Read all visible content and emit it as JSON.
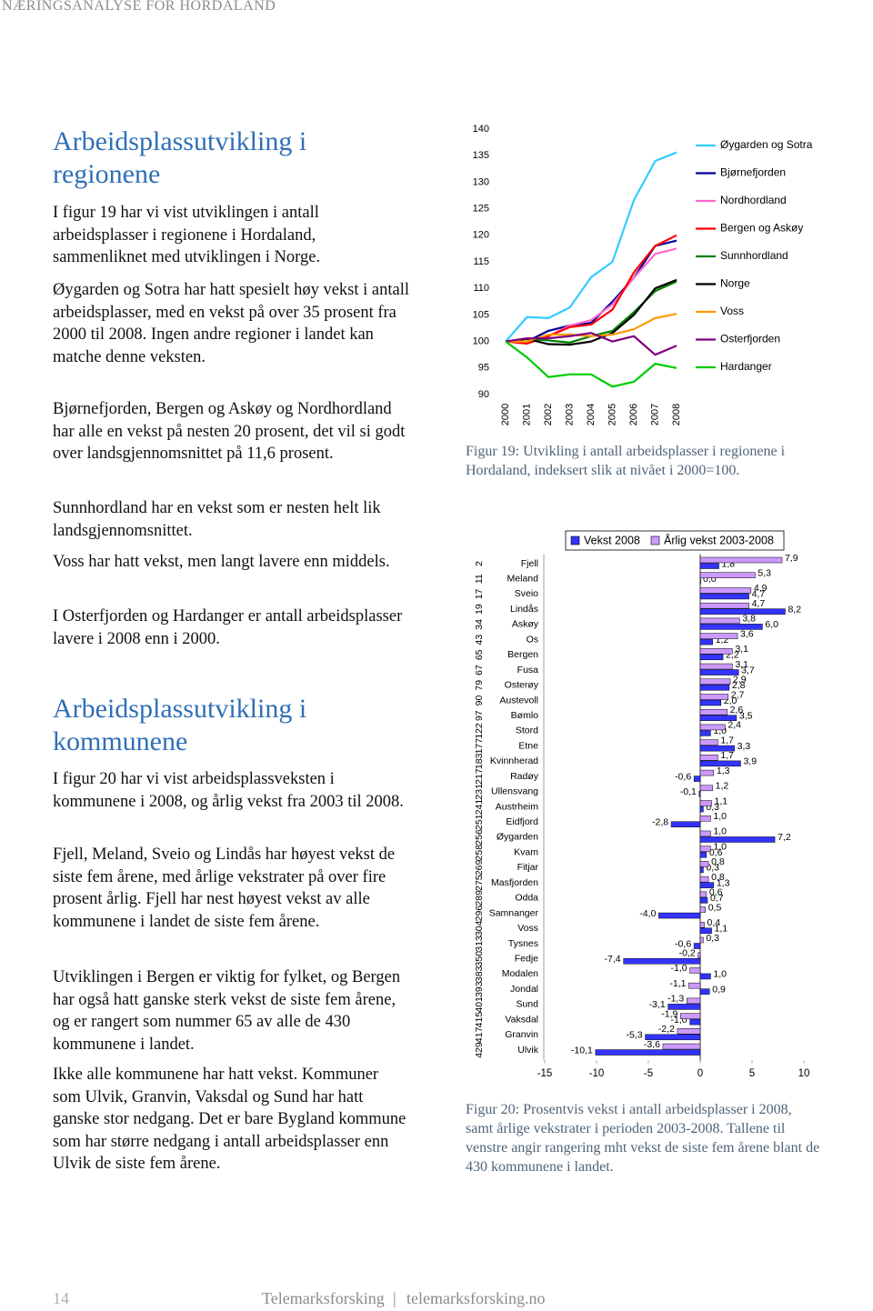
{
  "header": "NÆRINGSANALYSE FOR HORDALAND",
  "sections": [
    {
      "heading": "Arbeidsplassutvikling i regionene",
      "paragraphs": [
        "I figur 19 har vi vist utviklingen i antall arbeidsplasser i regionene i Hordaland, sammenliknet med utviklingen i Norge.",
        "Øygarden og Sotra har hatt spesielt høy vekst i antall arbeidsplasser, med en vekst på over 35 prosent fra 2000 til 2008. Ingen andre regioner i landet kan matche denne veksten.",
        "Bjørnefjorden, Bergen og Askøy og Nordhordland har alle en vekst på nesten 20 prosent, det vil si godt over landsgjennomsnittet på 11,6 prosent.",
        "Sunnhordland har en vekst som er nesten helt lik landsgjennomsnittet.",
        "Voss har hatt vekst, men langt lavere enn middels.",
        "I Osterfjorden og Hardanger er antall arbeidsplasser lavere i 2008 enn i 2000."
      ]
    },
    {
      "heading": "Arbeidsplassutvikling i kommunene",
      "paragraphs": [
        "I figur 20 har vi vist arbeidsplassveksten i kommunene i 2008, og årlig vekst fra 2003 til 2008.",
        "Fjell, Meland, Sveio og Lindås har høyest vekst de siste fem årene, med årlige vekstrater på over fire prosent årlig. Fjell har nest høyest vekst av alle kommunene i landet de siste fem årene.",
        "Utviklingen i Bergen er viktig for fylket, og Bergen har også hatt ganske sterk vekst de siste fem årene, og er rangert som nummer 65 av alle de 430 kommunene i landet.",
        "Ikke alle kommunene har hatt vekst. Kommuner som Ulvik, Granvin, Vaksdal og Sund har hatt ganske stor nedgang. Det er bare Bygland kommune som har større nedgang i antall arbeidsplasser enn Ulvik de siste fem årene."
      ]
    }
  ],
  "chart_data": [
    {
      "type": "line",
      "categories": [
        "2000",
        "2001",
        "2002",
        "2003",
        "2004",
        "2005",
        "2006",
        "2007",
        "2008"
      ],
      "series": [
        {
          "name": "Øygarden og Sotra",
          "color": "#33ccff",
          "values": [
            100,
            104.6,
            104.4,
            106.4,
            112.1,
            115,
            126.6,
            134,
            135.6
          ]
        },
        {
          "name": "Bjørnefjorden",
          "color": "#000099",
          "values": [
            100,
            100,
            102,
            103,
            103.5,
            107.5,
            112,
            118,
            119
          ]
        },
        {
          "name": "Nordhordland",
          "color": "#ff66cc",
          "values": [
            100,
            100,
            101,
            103,
            104,
            107,
            112,
            116.5,
            117.5
          ]
        },
        {
          "name": "Bergen og Askøy",
          "color": "#ff0000",
          "values": [
            100,
            99.6,
            101,
            102.7,
            103.2,
            106,
            113,
            118,
            120
          ]
        },
        {
          "name": "Sunnhordland",
          "color": "#008000",
          "values": [
            100,
            100.5,
            100.2,
            99.8,
            101,
            102,
            105.5,
            109.5,
            111.3
          ]
        },
        {
          "name": "Norge",
          "color": "#000000",
          "values": [
            100,
            100.5,
            99.5,
            99.4,
            100,
            101.6,
            105,
            110,
            111.6
          ]
        },
        {
          "name": "Voss",
          "color": "#ff9900",
          "values": [
            100,
            100,
            101.3,
            101.3,
            101,
            101.3,
            102.3,
            104.4,
            105.2
          ]
        },
        {
          "name": "Osterfjorden",
          "color": "#800080",
          "values": [
            100,
            100.6,
            100.6,
            101,
            101.6,
            100,
            101,
            97.5,
            99.2
          ]
        },
        {
          "name": "Hardanger",
          "color": "#00cc00",
          "values": [
            100,
            97,
            93.3,
            93.8,
            93.8,
            91.5,
            92.4,
            95.8,
            95
          ]
        }
      ],
      "ylim": [
        90,
        140
      ],
      "yticks": [
        90,
        95,
        100,
        105,
        110,
        115,
        120,
        125,
        130,
        135,
        140
      ],
      "legend": "right"
    },
    {
      "type": "bar",
      "orientation": "horizontal",
      "categories": [
        "Fjell",
        "Meland",
        "Sveio",
        "Lindås",
        "Askøy",
        "Os",
        "Bergen",
        "Fusa",
        "Osterøy",
        "Austevoll",
        "Bømlo",
        "Stord",
        "Etne",
        "Kvinnherad",
        "Radøy",
        "Ullensvang",
        "Austrheim",
        "Eidfjord",
        "Øygarden",
        "Kvam",
        "Fitjar",
        "Masfjorden",
        "Odda",
        "Samnanger",
        "Voss",
        "Tysnes",
        "Fedje",
        "Modalen",
        "Jondal",
        "Sund",
        "Vaksdal",
        "Granvin",
        "Ulvik"
      ],
      "ranks": [
        2,
        11,
        17,
        19,
        34,
        43,
        65,
        67,
        79,
        90,
        97,
        122,
        177,
        183,
        217,
        231,
        241,
        251,
        256,
        258,
        269,
        275,
        289,
        296,
        304,
        313,
        350,
        383,
        393,
        401,
        415,
        417,
        429
      ],
      "series": [
        {
          "name": "Vekst 2008",
          "color": "#3333ff",
          "values": [
            1.8,
            0.0,
            4.7,
            8.2,
            6.0,
            1.2,
            2.2,
            3.7,
            2.8,
            2.0,
            3.5,
            1.0,
            3.3,
            3.9,
            -0.6,
            -0.1,
            0.3,
            -2.8,
            7.2,
            0.6,
            0.3,
            1.3,
            0.7,
            -4.0,
            1.1,
            -0.6,
            -7.4,
            1.0,
            0.9,
            -3.1,
            -1.0,
            -5.3,
            -10.1
          ],
          "value_labels": [
            "1,8",
            "0,0",
            "4,7",
            "8,2",
            "6,0",
            "1,2",
            "2,2",
            "3,7",
            "2,8",
            "2,0",
            "3,5",
            "1,0",
            "3,3",
            "3,9",
            "-0,6",
            "-0,1",
            "0,3",
            "-2,8",
            "7,2",
            "0,6",
            "0,3",
            "1,3",
            "0,7",
            "-4,0",
            "1,1",
            "-0,6",
            "-7,4",
            "1,0",
            "0,9",
            "-3,1",
            "-1,0",
            "-5,3",
            "-10,1"
          ]
        },
        {
          "name": "Årlig vekst 2003-2008",
          "color": "#cc99ff",
          "values": [
            7.9,
            5.3,
            4.9,
            4.7,
            3.8,
            3.6,
            3.1,
            3.1,
            2.9,
            2.7,
            2.6,
            2.4,
            1.7,
            1.7,
            1.3,
            1.2,
            1.1,
            1.0,
            1.0,
            1.0,
            0.8,
            0.8,
            0.6,
            0.5,
            0.4,
            0.3,
            -0.2,
            -1.0,
            -1.1,
            -1.3,
            -1.9,
            -2.2,
            -3.6
          ],
          "value_labels": [
            "7,9",
            "5,3",
            "4,9",
            "4,7",
            "3,8",
            "3,6",
            "3,1",
            "3,1",
            "2,9",
            "2,7",
            "2,6",
            "2,4",
            "1,7",
            "1,7",
            "1,3",
            "1,2",
            "1,1",
            "1,0",
            "1,0",
            "1,0",
            "0,8",
            "0,8",
            "0,6",
            "0,5",
            "0,4",
            "0,3",
            "-0,2",
            "-1,0",
            "-1,1",
            "-1,3",
            "-1,9",
            "-2,2",
            "-3,6"
          ]
        }
      ],
      "xlim": [
        -15,
        10
      ],
      "xticks": [
        -15,
        -10,
        -5,
        0,
        5,
        10
      ],
      "legend": "top"
    }
  ],
  "captions": [
    "Figur 19: Utvikling i antall arbeidsplasser i regionene i Hordaland, indeksert slik at nivået i 2000=100.",
    "Figur 20: Prosentvis vekst i antall arbeidsplasser i 2008, samt årlige vekstrater i perioden 2003-2008. Tallene til venstre angir rangering mht vekst de siste fem årene blant de 430 kommunene i landet."
  ],
  "footer": {
    "page": 14,
    "publisher": "Telemarksforsking",
    "separator": "|",
    "url": "telemarksforsking.no"
  }
}
